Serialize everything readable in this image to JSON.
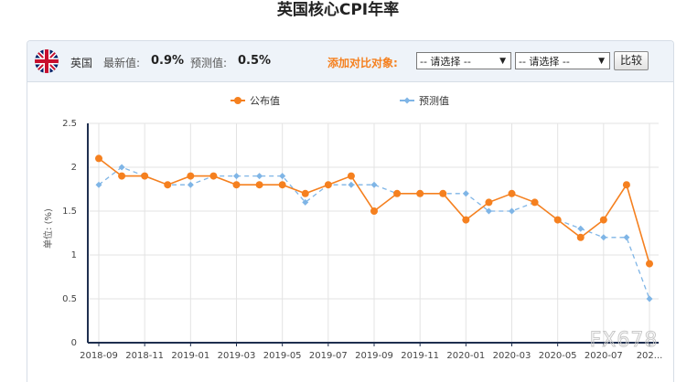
{
  "page": {
    "title": "英国核心CPI年率"
  },
  "toolbar": {
    "country": "英国",
    "latest_label": "最新值:",
    "latest_value": "0.9%",
    "forecast_label": "预测值:",
    "forecast_value": "0.5%",
    "compare_label": "添加对比对象:",
    "select1": "-- 请选择 --",
    "select2": "-- 请选择 --",
    "compare_button": "比较"
  },
  "watermark": "FX678",
  "colors": {
    "actual": "#f5801f",
    "forecast": "#7fb5e6",
    "axis": "#1f2f4f",
    "grid": "#e3e3e3"
  },
  "chart_data": {
    "type": "line",
    "title": "英国核心CPI年率",
    "ylabel": "单位: (%)",
    "ylim": [
      0,
      2.5
    ],
    "yticks": [
      0,
      0.5,
      1,
      1.5,
      2,
      2.5
    ],
    "grid": true,
    "legend_position": "top-center",
    "x": [
      "2018-09",
      "2018-10",
      "2018-11",
      "2018-12",
      "2019-01",
      "2019-02",
      "2019-03",
      "2019-04",
      "2019-05",
      "2019-06",
      "2019-07",
      "2019-08",
      "2019-09",
      "2019-10",
      "2019-11",
      "2019-12",
      "2020-01",
      "2020-02",
      "2020-03",
      "2020-04",
      "2020-05",
      "2020-06",
      "2020-07",
      "2020-08",
      "2020-09"
    ],
    "xtick_labels": [
      "2018-09",
      "2018-11",
      "2019-01",
      "2019-03",
      "2019-05",
      "2019-07",
      "2019-09",
      "2019-11",
      "2020-01",
      "2020-03",
      "2020-05",
      "2020-07",
      "202..."
    ],
    "series": [
      {
        "name": "公布值",
        "style": "solid",
        "values": [
          2.1,
          1.9,
          1.9,
          1.8,
          1.9,
          1.9,
          1.8,
          1.8,
          1.8,
          1.7,
          1.8,
          1.9,
          1.5,
          1.7,
          1.7,
          1.7,
          1.4,
          1.6,
          1.7,
          1.6,
          1.4,
          1.2,
          1.4,
          1.8,
          0.9
        ]
      },
      {
        "name": "预测值",
        "style": "dashed",
        "values": [
          1.8,
          2.0,
          1.9,
          1.8,
          1.8,
          1.9,
          1.9,
          1.9,
          1.9,
          1.6,
          1.8,
          1.8,
          1.8,
          1.7,
          1.7,
          1.7,
          1.7,
          1.5,
          1.5,
          1.6,
          1.4,
          1.3,
          1.2,
          1.2,
          0.5
        ]
      }
    ]
  }
}
